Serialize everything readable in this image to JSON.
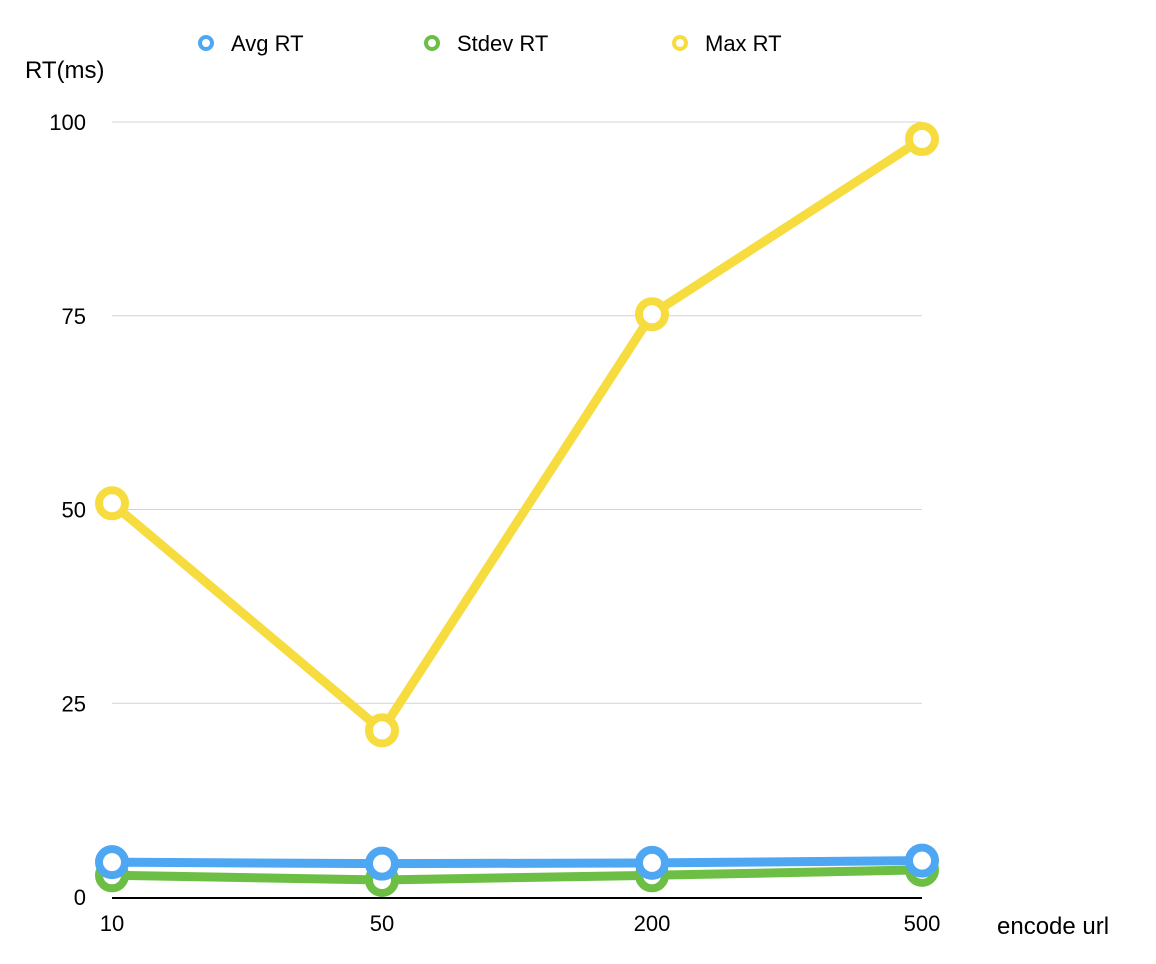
{
  "chart_data": {
    "type": "line",
    "categories": [
      "10",
      "50",
      "200",
      "500"
    ],
    "series": [
      {
        "name": "Avg RT",
        "color": "#4ea7f2",
        "values": [
          4.5,
          4.3,
          4.4,
          4.7
        ]
      },
      {
        "name": "Stdev RT",
        "color": "#6cbe45",
        "values": [
          2.8,
          2.2,
          2.8,
          3.5
        ]
      },
      {
        "name": "Max RT",
        "color": "#f7dc40",
        "values": [
          50.8,
          21.5,
          75.2,
          97.8
        ]
      }
    ],
    "ylabel": "RT(ms)",
    "xlabel": "encode url",
    "ylim": [
      0,
      100
    ],
    "yticks": [
      0,
      25,
      50,
      75,
      100
    ],
    "grid": true,
    "legend_position": "top"
  }
}
